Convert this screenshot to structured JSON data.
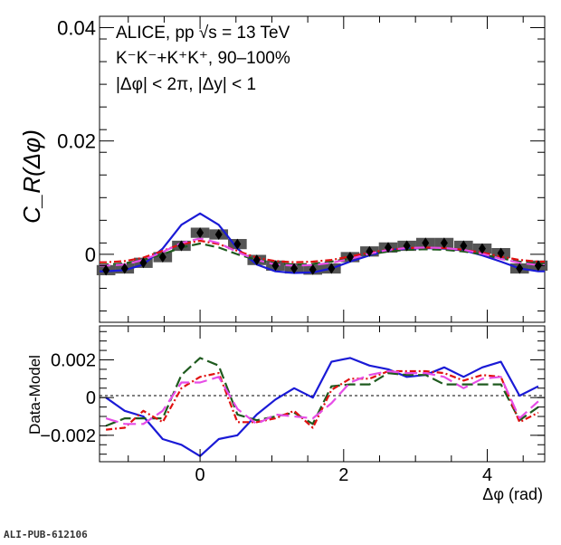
{
  "figure_id": "ALI-PUB-612106",
  "annotations": {
    "line1": "ALICE, pp √s = 13 TeV",
    "line2": "K⁻K⁻+K⁺K⁺, 90–100%",
    "line3": "|Δφ| < 2π, |Δy| < 1"
  },
  "colors": {
    "data": "#000000",
    "syst": "#555555",
    "blue": "#1a1ad6",
    "green": "#1e5a1e",
    "red": "#e01010",
    "magenta": "#e64ce6"
  },
  "chart_data": [
    {
      "type": "scatter",
      "panel": "top",
      "ylabel": "C_R(Δφ)",
      "xlim": [
        -1.4,
        4.8
      ],
      "ylim": [
        -0.012,
        0.042
      ],
      "yticks": [
        {
          "v": 0,
          "label": "0"
        },
        {
          "v": 0.02,
          "label": "0.02"
        },
        {
          "v": 0.04,
          "label": "0.04"
        }
      ],
      "x": [
        -1.31,
        -1.05,
        -0.79,
        -0.52,
        -0.26,
        0.0,
        0.26,
        0.52,
        0.79,
        1.05,
        1.31,
        1.57,
        1.83,
        2.09,
        2.36,
        2.62,
        2.88,
        3.14,
        3.4,
        3.67,
        3.93,
        4.19,
        4.45,
        4.71
      ],
      "series": [
        {
          "id": "data",
          "values": [
            -0.0028,
            -0.0025,
            -0.0015,
            -0.0005,
            0.0015,
            0.0038,
            0.0035,
            0.0018,
            -0.001,
            -0.002,
            -0.0025,
            -0.0027,
            -0.0025,
            -0.0005,
            0.0005,
            0.0012,
            0.0015,
            0.002,
            0.002,
            0.0015,
            0.001,
            0.0002,
            -0.0025,
            -0.002
          ],
          "syst": 0.0018
        },
        {
          "id": "blue",
          "values": [
            -0.003,
            -0.0028,
            -0.0018,
            0.001,
            0.0052,
            0.0072,
            0.0052,
            0.001,
            -0.0018,
            -0.003,
            -0.0033,
            -0.0032,
            -0.0025,
            -0.0013,
            -0.0002,
            0.0007,
            0.001,
            0.0011,
            0.001,
            0.0007,
            -0.0002,
            -0.0013,
            -0.0025,
            -0.003
          ]
        },
        {
          "id": "green",
          "values": [
            -0.0018,
            -0.0016,
            -0.001,
            0.0,
            0.0012,
            0.0019,
            0.0012,
            0.0,
            -0.001,
            -0.0016,
            -0.0018,
            -0.0017,
            -0.0013,
            -0.0007,
            0.0,
            0.0005,
            0.0008,
            0.0009,
            0.0008,
            0.0005,
            0.0,
            -0.0007,
            -0.0013,
            -0.0017
          ]
        },
        {
          "id": "red",
          "values": [
            -0.0014,
            -0.0012,
            -0.0006,
            0.0006,
            0.0018,
            0.0024,
            0.0018,
            0.0006,
            -0.0006,
            -0.0012,
            -0.0014,
            -0.0013,
            -0.001,
            -0.0004,
            0.0003,
            0.0008,
            0.0011,
            0.0012,
            0.0011,
            0.0008,
            0.0003,
            -0.0004,
            -0.001,
            -0.0013
          ]
        },
        {
          "id": "magenta",
          "values": [
            -0.002,
            -0.0018,
            -0.001,
            0.0004,
            0.002,
            0.0028,
            0.002,
            0.0004,
            -0.001,
            -0.0018,
            -0.002,
            -0.0019,
            -0.0015,
            -0.0008,
            0.0001,
            0.0008,
            0.0011,
            0.0012,
            0.0011,
            0.0008,
            0.0001,
            -0.0008,
            -0.0015,
            -0.0019
          ]
        }
      ]
    },
    {
      "type": "line",
      "panel": "bottom",
      "ylabel": "Data-Model",
      "xlabel": "Δφ (rad)",
      "xlim": [
        -1.4,
        4.8
      ],
      "ylim": [
        -0.0034,
        0.0038
      ],
      "xticks": [
        {
          "v": 0,
          "label": "0"
        },
        {
          "v": 2,
          "label": "2"
        },
        {
          "v": 4,
          "label": "4"
        }
      ],
      "yticks": [
        {
          "v": -0.002,
          "label": "−0.002"
        },
        {
          "v": 0,
          "label": "0"
        },
        {
          "v": 0.002,
          "label": "0.002"
        }
      ],
      "x": [
        -1.31,
        -1.05,
        -0.79,
        -0.52,
        -0.26,
        0.0,
        0.26,
        0.52,
        0.79,
        1.05,
        1.31,
        1.57,
        1.83,
        2.09,
        2.36,
        2.62,
        2.88,
        3.14,
        3.4,
        3.67,
        3.93,
        4.19,
        4.45,
        4.71
      ],
      "series": [
        {
          "id": "blue",
          "style": "solid",
          "values": [
            0.0,
            -0.0007,
            -0.001,
            -0.0022,
            -0.0025,
            -0.0031,
            -0.0022,
            -0.002,
            -0.0009,
            -0.0001,
            0.0005,
            0.0,
            0.0019,
            0.0021,
            0.0017,
            0.0015,
            0.0011,
            0.0012,
            0.0016,
            0.0011,
            0.0016,
            0.0019,
            0.0001,
            0.0006
          ]
        },
        {
          "id": "green",
          "style": "longdash",
          "values": [
            -0.0015,
            -0.0011,
            -0.0011,
            -0.0011,
            0.0012,
            0.0021,
            0.0017,
            -0.0009,
            -0.0012,
            -0.001,
            -0.0008,
            -0.0014,
            0.0006,
            0.0007,
            0.0007,
            0.0013,
            0.0012,
            0.0012,
            0.0007,
            0.0007,
            0.0007,
            0.0007,
            -0.0012,
            -0.0005
          ]
        },
        {
          "id": "red",
          "style": "dashdot",
          "values": [
            -0.0017,
            -0.0016,
            -0.0007,
            -0.0013,
            0.0005,
            0.0011,
            0.0013,
            -0.0013,
            -0.0013,
            -0.0011,
            -0.0007,
            -0.0016,
            0.0004,
            0.001,
            0.001,
            0.0014,
            0.0014,
            0.0014,
            0.0013,
            0.0009,
            0.0012,
            0.0011,
            -0.0013,
            -0.0008
          ]
        },
        {
          "id": "magenta",
          "style": "dashed",
          "values": [
            -0.0011,
            -0.0014,
            -0.0014,
            -0.0007,
            0.0008,
            0.0008,
            0.0011,
            -0.0006,
            -0.0014,
            -0.0009,
            -0.001,
            -0.0011,
            -0.0003,
            0.0008,
            0.0012,
            0.0014,
            0.0013,
            0.0013,
            0.0011,
            0.0005,
            0.001,
            0.0011,
            -0.0011,
            -0.0002
          ]
        }
      ]
    }
  ]
}
